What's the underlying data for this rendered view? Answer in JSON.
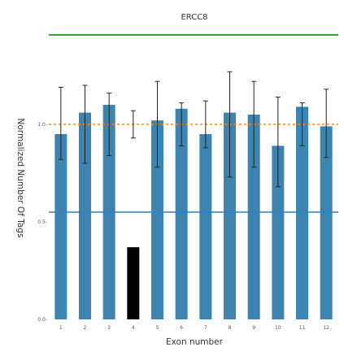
{
  "chart_data": {
    "type": "bar",
    "title": "ERCC8",
    "xlabel": "Exon number",
    "ylabel": "Normalized Number Of Tags",
    "categories": [
      "1",
      "2",
      "3",
      "4",
      "5",
      "6",
      "7",
      "8",
      "9",
      "10",
      "11",
      "12"
    ],
    "values": [
      0.95,
      1.06,
      1.1,
      0.37,
      1.02,
      1.08,
      0.95,
      1.06,
      1.05,
      0.89,
      1.09,
      0.99
    ],
    "error_low": [
      0.82,
      0.8,
      0.84,
      0.93,
      0.78,
      0.89,
      0.88,
      0.73,
      0.78,
      0.68,
      0.89,
      0.83
    ],
    "error_high": [
      1.19,
      1.2,
      1.16,
      1.07,
      1.22,
      1.11,
      1.12,
      1.27,
      1.22,
      1.14,
      1.11,
      1.18
    ],
    "highlighted_category": "4",
    "yticks": [
      0.0,
      0.5,
      1.0
    ],
    "ytick_labels": [
      "0.0-",
      "0.5-",
      "1.0-"
    ],
    "ylim": [
      0.0,
      1.4
    ],
    "reference_line_value": 1.0,
    "threshold_line_value": 0.55,
    "grid": false,
    "colors": {
      "bar": "#3d85b0",
      "highlight_bar": "#000000",
      "reference_line": "#f08a24",
      "threshold_line": "#2e7fc0",
      "title_underline": "#3aaa35",
      "error_bar": "#222222"
    }
  }
}
